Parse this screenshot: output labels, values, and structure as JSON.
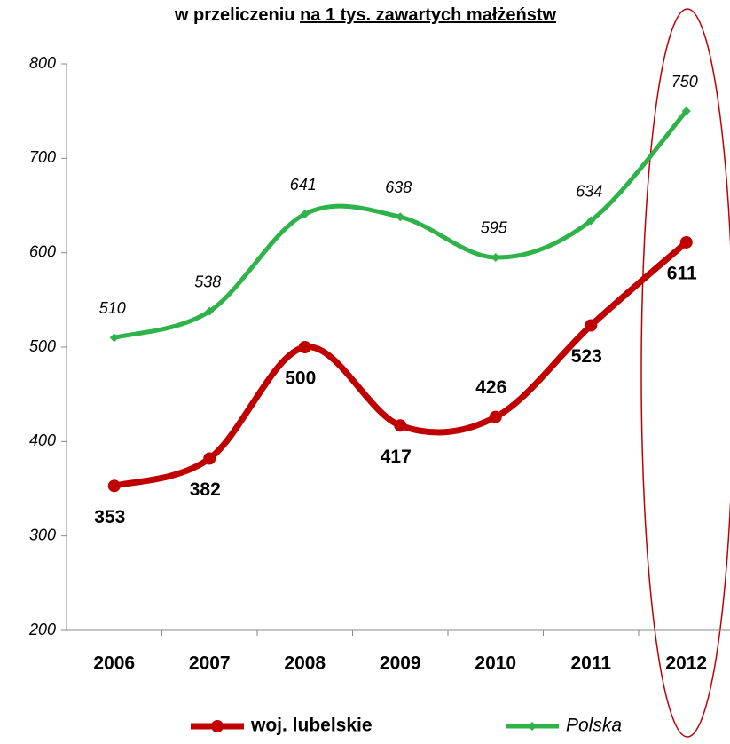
{
  "chart_data": {
    "type": "line",
    "title": "w przeliczeniu",
    "title_underlined": "na 1 tys. zawartych małżeństw",
    "categories": [
      "2006",
      "2007",
      "2008",
      "2009",
      "2010",
      "2011",
      "2012"
    ],
    "series": [
      {
        "name": "woj. lubelskie",
        "color": "#c00000",
        "values": [
          353,
          382,
          500,
          417,
          426,
          523,
          611
        ]
      },
      {
        "name": "Polska",
        "color": "#2db34a",
        "values": [
          510,
          538,
          641,
          638,
          595,
          634,
          750
        ]
      }
    ],
    "ylim": [
      200,
      800
    ],
    "yticks": [
      200,
      300,
      400,
      500,
      600,
      700,
      800
    ],
    "grid": false,
    "legend": "bottom",
    "smooth": true
  }
}
